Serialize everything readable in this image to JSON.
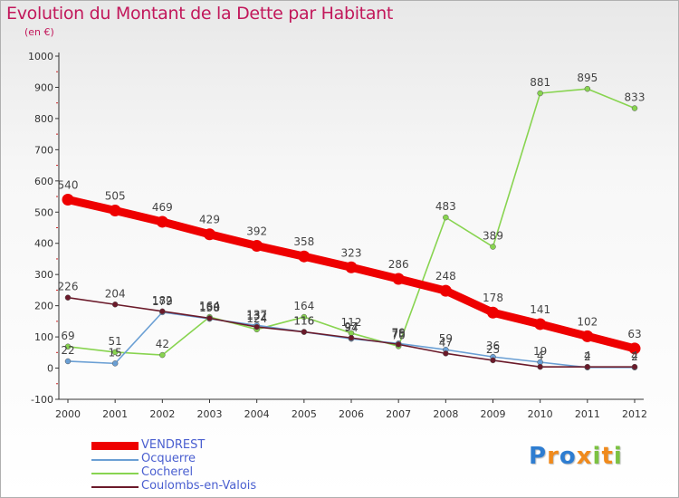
{
  "header": {
    "title": "Evolution du Montant de la Dette par Habitant",
    "subtitle": "(en €)"
  },
  "logo": {
    "text": "Proxiti"
  },
  "chart_data": {
    "type": "line",
    "title": "Evolution du Montant de la Dette par Habitant",
    "subtitle": "(en €)",
    "xlabel": "",
    "ylabel": "",
    "x": [
      "2000",
      "2001",
      "2002",
      "2003",
      "2004",
      "2005",
      "2006",
      "2007",
      "2008",
      "2009",
      "2010",
      "2011",
      "2012"
    ],
    "ylim": [
      -100,
      1000
    ],
    "yticks": [
      "-100",
      "0",
      "100",
      "200",
      "300",
      "400",
      "500",
      "600",
      "700",
      "800",
      "900",
      "1000"
    ],
    "grid": false,
    "legend_position": "bottom-left",
    "series": [
      {
        "name": "VENDREST",
        "color": "#ee0000",
        "values": [
          540,
          505,
          469,
          429,
          392,
          358,
          323,
          286,
          248,
          178,
          141,
          102,
          63
        ],
        "labels": [
          "540",
          "505",
          "469",
          "429",
          "392",
          "358",
          "323",
          "286",
          "248",
          "178",
          "141",
          "102",
          "63"
        ]
      },
      {
        "name": "Ocquerre",
        "color": "#6a9fd4",
        "values": [
          22,
          15,
          179,
          158,
          137,
          116,
          94,
          79,
          59,
          36,
          19,
          2,
          2
        ],
        "labels": [
          "22",
          "15",
          "179",
          "158",
          "137",
          "116",
          "94",
          "79",
          "59",
          "36",
          "19",
          "2",
          "2"
        ]
      },
      {
        "name": "Cocherel",
        "color": "#88d450",
        "values": [
          69,
          51,
          42,
          164,
          124,
          164,
          112,
          70,
          483,
          389,
          881,
          895,
          833
        ],
        "labels": [
          "69",
          "51",
          "42",
          "164",
          "124",
          "164",
          "112",
          "70",
          "483",
          "389",
          "881",
          "895",
          "833"
        ]
      },
      {
        "name": "Coulombs-en-Valois",
        "color": "#6b1a2a",
        "values": [
          226,
          204,
          182,
          160,
          132,
          116,
          97,
          76,
          47,
          25,
          4,
          4,
          4
        ],
        "labels": [
          "226",
          "204",
          "182",
          "160",
          "132",
          "116",
          "97",
          "76",
          "47",
          "25",
          "4",
          "4",
          "4"
        ]
      }
    ]
  }
}
